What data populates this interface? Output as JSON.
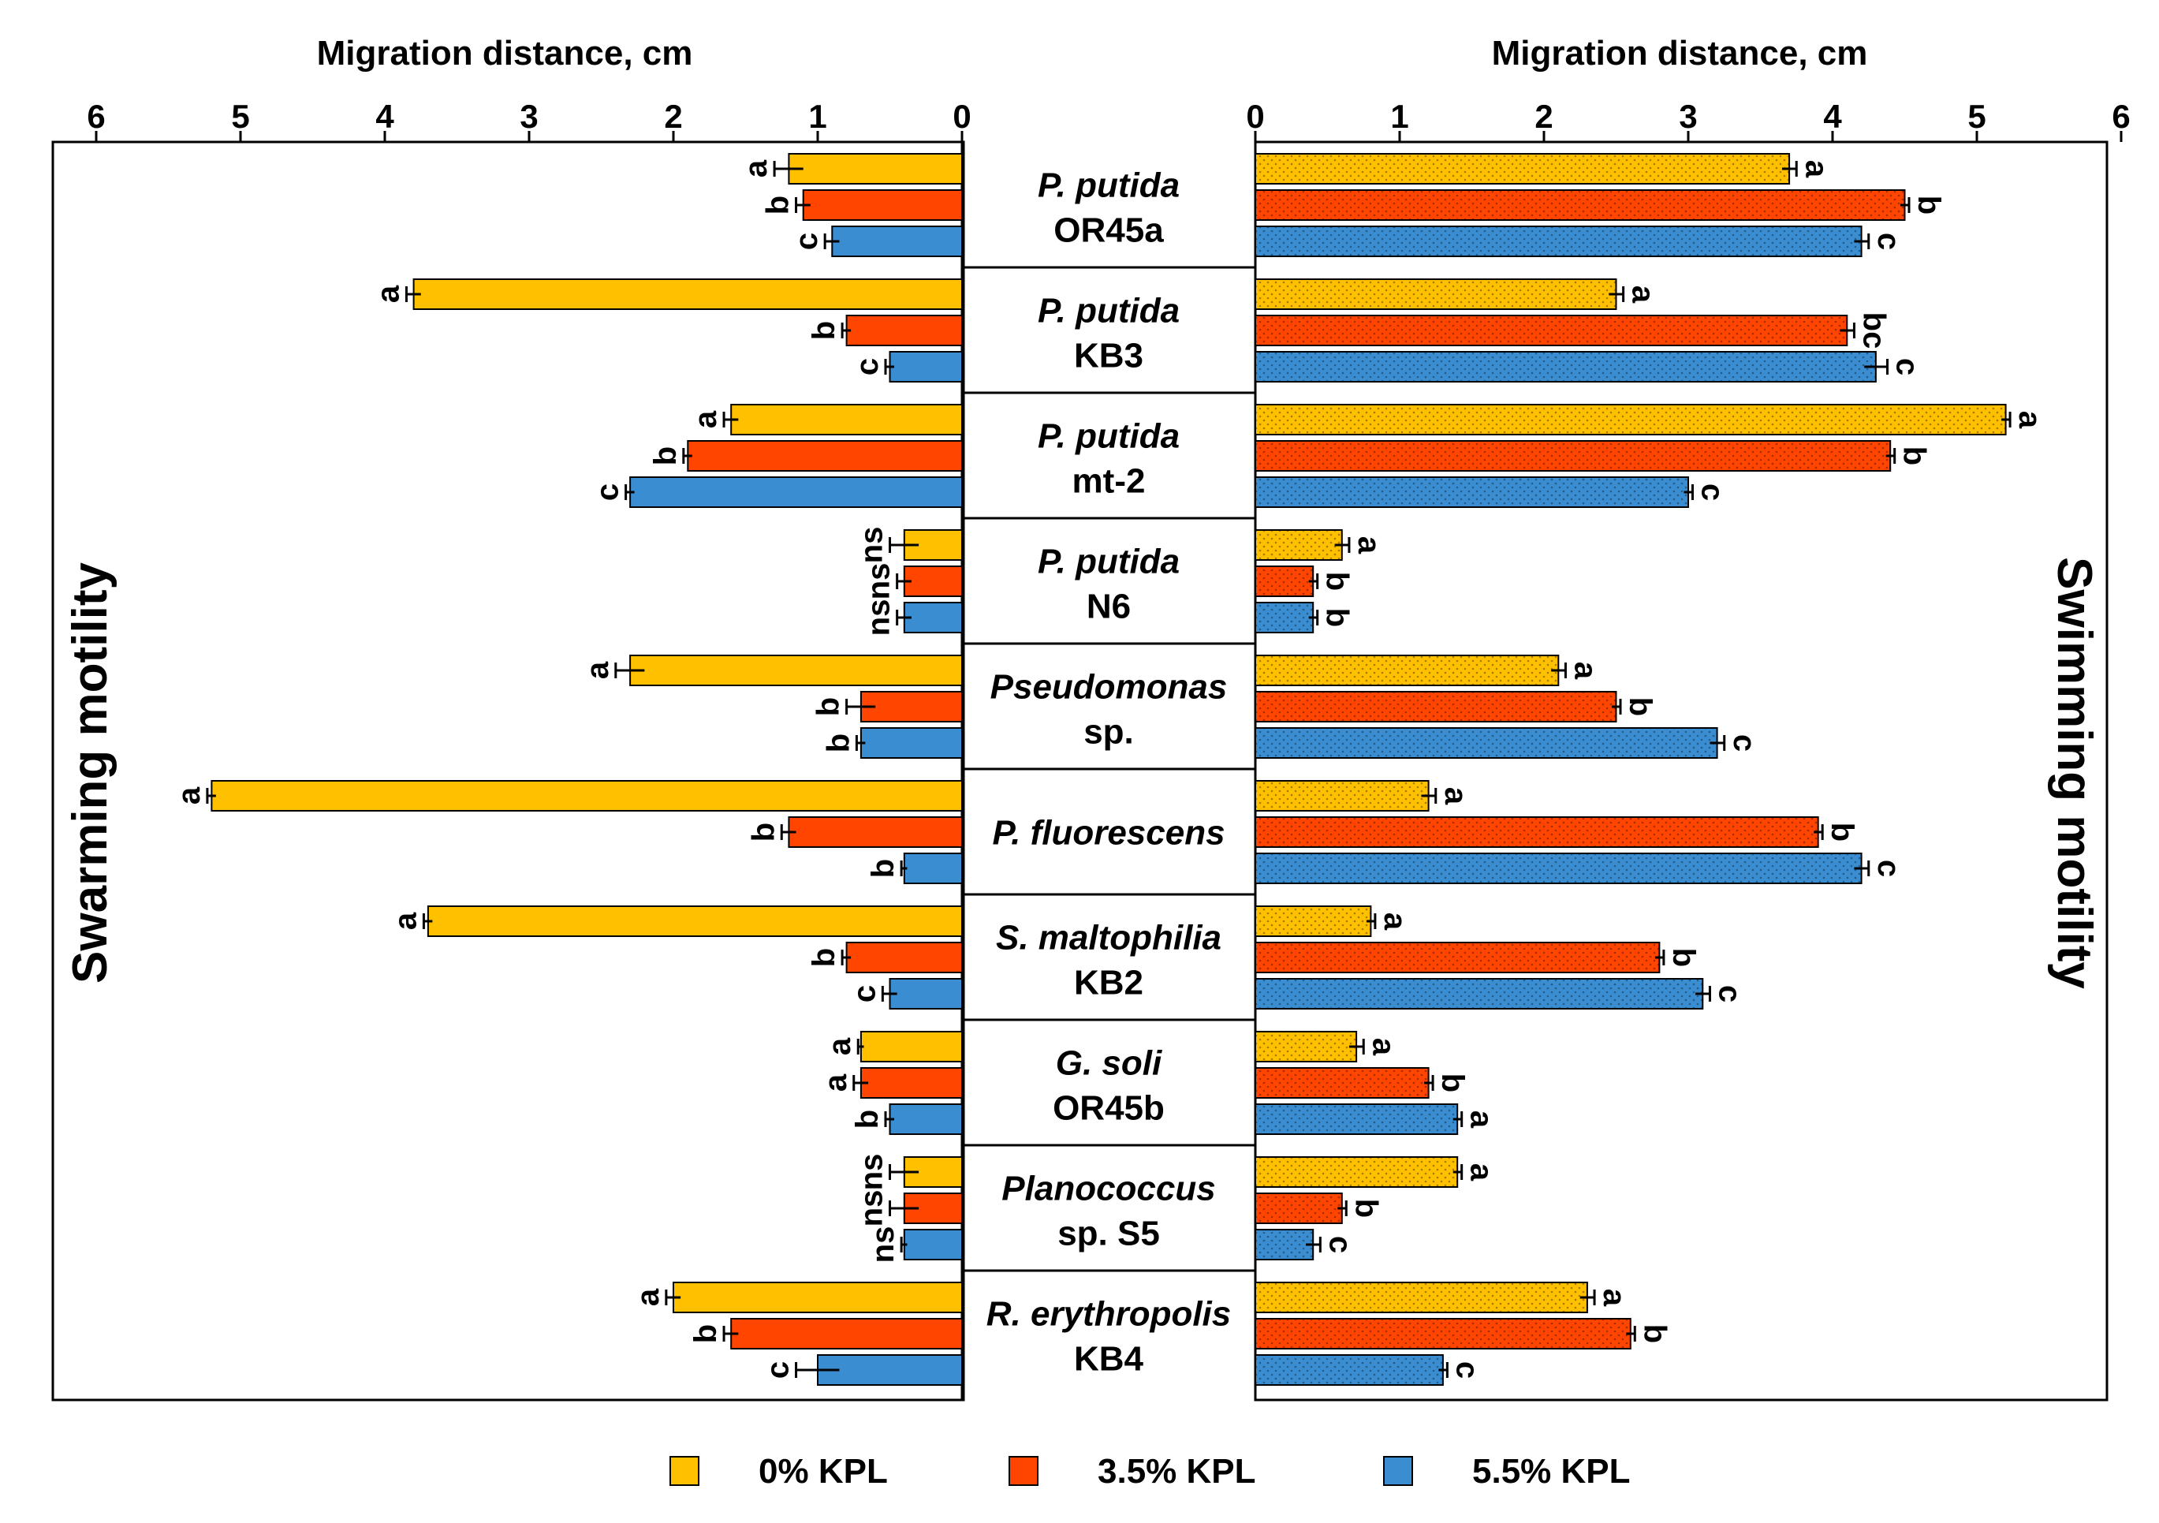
{
  "chart_data": {
    "type": "bar",
    "orientation": "horizontal-butterfly",
    "legend": {
      "position": "bottom",
      "entries": [
        {
          "label": "0% KPL",
          "color": "#FFC000"
        },
        {
          "label": "3.5% KPL",
          "color": "#FF4500"
        },
        {
          "label": "5.5% KPL",
          "color": "#3A8DD0"
        }
      ]
    },
    "left_panel": {
      "title": "Swarming motility",
      "xlabel": "Migration distance, cm",
      "xlim": [
        0,
        6
      ],
      "ticks": [
        "6",
        "5",
        "4",
        "3",
        "2",
        "1",
        "0"
      ]
    },
    "right_panel": {
      "title": "Swimming motility",
      "xlabel": "Migration distance, cm",
      "xlim": [
        0,
        6
      ],
      "ticks": [
        "0",
        "1",
        "2",
        "3",
        "4",
        "5",
        "6"
      ]
    },
    "groups": [
      {
        "line1": "P. putida",
        "line2": "OR45a",
        "swarming": {
          "values": [
            1.2,
            1.1,
            0.9
          ],
          "errors": [
            0.1,
            0.05,
            0.05
          ],
          "labels": [
            "a",
            "b",
            "c"
          ]
        },
        "swimming": {
          "values": [
            3.7,
            4.5,
            4.2
          ],
          "errors": [
            0.05,
            0.03,
            0.05
          ],
          "labels": [
            "a",
            "b",
            "c"
          ]
        }
      },
      {
        "line1": "P. putida",
        "line2": "KB3",
        "swarming": {
          "values": [
            3.8,
            0.8,
            0.5
          ],
          "errors": [
            0.05,
            0.03,
            0.03
          ],
          "labels": [
            "a",
            "b",
            "c"
          ]
        },
        "swimming": {
          "values": [
            2.5,
            4.1,
            4.3
          ],
          "errors": [
            0.05,
            0.05,
            0.08
          ],
          "labels": [
            "a",
            "bc",
            "c"
          ]
        }
      },
      {
        "line1": "P. putida",
        "line2": "mt-2",
        "swarming": {
          "values": [
            1.6,
            1.9,
            2.3
          ],
          "errors": [
            0.05,
            0.03,
            0.03
          ],
          "labels": [
            "a",
            "b",
            "c"
          ]
        },
        "swimming": {
          "values": [
            5.2,
            4.4,
            3.0
          ],
          "errors": [
            0.03,
            0.03,
            0.03
          ],
          "labels": [
            "a",
            "b",
            "c"
          ]
        }
      },
      {
        "line1": "P. putida",
        "line2": "N6",
        "swarming": {
          "values": [
            0.4,
            0.4,
            0.4
          ],
          "errors": [
            0.1,
            0.05,
            0.05
          ],
          "labels": [
            "ns",
            "ns",
            "ns"
          ]
        },
        "swimming": {
          "values": [
            0.6,
            0.4,
            0.4
          ],
          "errors": [
            0.05,
            0.03,
            0.03
          ],
          "labels": [
            "a",
            "b",
            "b"
          ]
        }
      },
      {
        "line1": "Pseudomonas",
        "line2": "sp.",
        "swarming": {
          "values": [
            2.3,
            0.7,
            0.7
          ],
          "errors": [
            0.1,
            0.1,
            0.03
          ],
          "labels": [
            "a",
            "b",
            "b"
          ]
        },
        "swimming": {
          "values": [
            2.1,
            2.5,
            3.2
          ],
          "errors": [
            0.05,
            0.03,
            0.05
          ],
          "labels": [
            "a",
            "b",
            "c"
          ]
        }
      },
      {
        "line1": "P. fluorescens",
        "line2": "",
        "swarming": {
          "values": [
            5.2,
            1.2,
            0.4
          ],
          "errors": [
            0.03,
            0.05,
            0.02
          ],
          "labels": [
            "a",
            "b",
            "b"
          ]
        },
        "swimming": {
          "values": [
            1.2,
            3.9,
            4.2
          ],
          "errors": [
            0.05,
            0.03,
            0.05
          ],
          "labels": [
            "a",
            "b",
            "c"
          ]
        }
      },
      {
        "line1": "S. maltophilia",
        "line2": "KB2",
        "swarming": {
          "values": [
            3.7,
            0.8,
            0.5
          ],
          "errors": [
            0.03,
            0.03,
            0.05
          ],
          "labels": [
            "a",
            "b",
            "c"
          ]
        },
        "swimming": {
          "values": [
            0.8,
            2.8,
            3.1
          ],
          "errors": [
            0.03,
            0.03,
            0.05
          ],
          "labels": [
            "a",
            "b",
            "c"
          ]
        }
      },
      {
        "line1": "G. soli",
        "line2": "OR45b",
        "swarming": {
          "values": [
            0.7,
            0.7,
            0.5
          ],
          "errors": [
            0.02,
            0.05,
            0.03
          ],
          "labels": [
            "a",
            "a",
            "b"
          ]
        },
        "swimming": {
          "values": [
            0.7,
            1.2,
            1.4
          ],
          "errors": [
            0.05,
            0.03,
            0.03
          ],
          "labels": [
            "a",
            "b",
            "a"
          ]
        }
      },
      {
        "line1": "Planococcus",
        "line2": "sp. S5",
        "swarming": {
          "values": [
            0.4,
            0.4,
            0.4
          ],
          "errors": [
            0.1,
            0.1,
            0.02
          ],
          "labels": [
            "ns",
            "ns",
            "ns"
          ]
        },
        "swimming": {
          "values": [
            1.4,
            0.6,
            0.4
          ],
          "errors": [
            0.03,
            0.03,
            0.05
          ],
          "labels": [
            "a",
            "b",
            "c"
          ]
        }
      },
      {
        "line1": "R. erythropolis",
        "line2": "KB4",
        "swarming": {
          "values": [
            2.0,
            1.6,
            1.0
          ],
          "errors": [
            0.05,
            0.05,
            0.15
          ],
          "labels": [
            "a",
            "b",
            "c"
          ]
        },
        "swimming": {
          "values": [
            2.3,
            2.6,
            1.3
          ],
          "errors": [
            0.05,
            0.03,
            0.03
          ],
          "labels": [
            "a",
            "b",
            "c"
          ]
        }
      }
    ]
  }
}
